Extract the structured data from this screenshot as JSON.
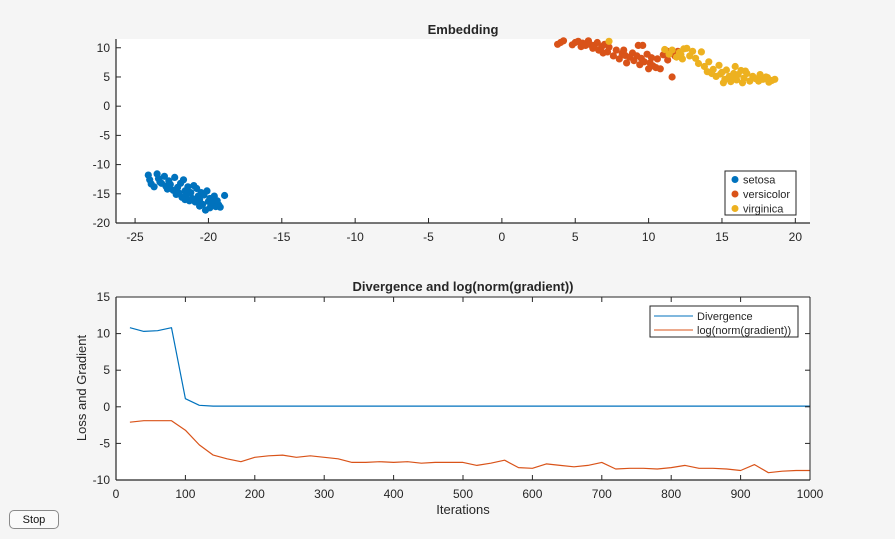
{
  "figure": {
    "background": "#f5f5f5",
    "stop_button_label": "Stop"
  },
  "chart_data": [
    {
      "type": "scatter",
      "title": "Embedding",
      "xlabel": "",
      "ylabel": "",
      "xlim": [
        -26.3,
        21
      ],
      "ylim": [
        -20,
        11.5
      ],
      "xticks": [
        -25,
        -20,
        -15,
        -10,
        -5,
        0,
        5,
        10,
        15,
        20
      ],
      "yticks": [
        -20,
        -15,
        -10,
        -5,
        0,
        5,
        10
      ],
      "grid": false,
      "legend_position": "bottom-right",
      "series": [
        {
          "name": "setosa",
          "color": "#0072BD",
          "points": [
            [
              -24.1,
              -11.8
            ],
            [
              -24.0,
              -12.6
            ],
            [
              -23.9,
              -13.3
            ],
            [
              -23.7,
              -13.8
            ],
            [
              -23.5,
              -11.6
            ],
            [
              -23.4,
              -12.4
            ],
            [
              -23.2,
              -13.2
            ],
            [
              -23.0,
              -12.0
            ],
            [
              -22.9,
              -13.7
            ],
            [
              -22.7,
              -12.8
            ],
            [
              -22.6,
              -13.4
            ],
            [
              -22.4,
              -14.4
            ],
            [
              -22.3,
              -12.2
            ],
            [
              -22.1,
              -13.9
            ],
            [
              -22.0,
              -14.9
            ],
            [
              -21.9,
              -13.2
            ],
            [
              -21.8,
              -15.6
            ],
            [
              -21.7,
              -12.6
            ],
            [
              -21.6,
              -14.5
            ],
            [
              -21.5,
              -15.2
            ],
            [
              -21.4,
              -13.8
            ],
            [
              -21.3,
              -16.2
            ],
            [
              -21.2,
              -14.8
            ],
            [
              -21.1,
              -15.8
            ],
            [
              -21.0,
              -13.6
            ],
            [
              -20.9,
              -16.4
            ],
            [
              -20.8,
              -14.1
            ],
            [
              -20.7,
              -15.4
            ],
            [
              -20.6,
              -16.0
            ],
            [
              -20.5,
              -14.8
            ],
            [
              -20.4,
              -16.8
            ],
            [
              -20.3,
              -15.2
            ],
            [
              -20.2,
              -17.8
            ],
            [
              -20.1,
              -14.5
            ],
            [
              -20.0,
              -16.3
            ],
            [
              -19.9,
              -15.8
            ],
            [
              -19.8,
              -17.0
            ],
            [
              -19.7,
              -16.5
            ],
            [
              -19.6,
              -15.4
            ],
            [
              -19.5,
              -17.2
            ],
            [
              -19.4,
              -16.2
            ],
            [
              -19.3,
              -16.9
            ],
            [
              -19.2,
              -17.3
            ],
            [
              -18.9,
              -15.3
            ],
            [
              -22.8,
              -14.2
            ],
            [
              -23.3,
              -13.0
            ],
            [
              -21.6,
              -16.0
            ],
            [
              -20.6,
              -17.1
            ],
            [
              -22.2,
              -15.1
            ],
            [
              -19.9,
              -17.4
            ]
          ]
        },
        {
          "name": "versicolor",
          "color": "#D95319",
          "points": [
            [
              3.8,
              10.6
            ],
            [
              4.0,
              10.9
            ],
            [
              4.2,
              11.2
            ],
            [
              4.8,
              10.5
            ],
            [
              5.0,
              10.9
            ],
            [
              5.2,
              11.1
            ],
            [
              5.4,
              10.2
            ],
            [
              5.5,
              10.8
            ],
            [
              5.7,
              10.4
            ],
            [
              5.9,
              11.2
            ],
            [
              6.0,
              10.6
            ],
            [
              6.2,
              9.9
            ],
            [
              6.3,
              10.4
            ],
            [
              6.5,
              10.9
            ],
            [
              6.6,
              9.6
            ],
            [
              6.8,
              10.2
            ],
            [
              7.0,
              10.6
            ],
            [
              7.2,
              9.3
            ],
            [
              7.3,
              10.1
            ],
            [
              7.6,
              8.6
            ],
            [
              7.8,
              9.6
            ],
            [
              8.0,
              8.1
            ],
            [
              8.2,
              9.0
            ],
            [
              8.4,
              8.7
            ],
            [
              8.5,
              7.4
            ],
            [
              8.7,
              8.4
            ],
            [
              8.9,
              9.1
            ],
            [
              9.0,
              7.8
            ],
            [
              9.2,
              8.6
            ],
            [
              9.3,
              10.4
            ],
            [
              9.4,
              7.1
            ],
            [
              9.5,
              8.2
            ],
            [
              9.6,
              10.4
            ],
            [
              9.7,
              7.6
            ],
            [
              9.9,
              8.9
            ],
            [
              10.0,
              6.4
            ],
            [
              10.1,
              7.4
            ],
            [
              10.2,
              8.3
            ],
            [
              10.3,
              6.9
            ],
            [
              10.5,
              6.6
            ],
            [
              10.6,
              8.1
            ],
            [
              10.8,
              6.4
            ],
            [
              11.0,
              8.8
            ],
            [
              11.3,
              7.9
            ],
            [
              11.6,
              5.0
            ],
            [
              11.8,
              8.6
            ],
            [
              12.0,
              9.4
            ],
            [
              8.3,
              9.6
            ],
            [
              6.9,
              9.1
            ],
            [
              11.2,
              9.5
            ]
          ]
        },
        {
          "name": "virginica",
          "color": "#EDB120",
          "points": [
            [
              7.3,
              11.1
            ],
            [
              11.1,
              9.7
            ],
            [
              11.4,
              8.9
            ],
            [
              11.6,
              9.6
            ],
            [
              11.9,
              8.4
            ],
            [
              12.1,
              9.2
            ],
            [
              12.3,
              8.1
            ],
            [
              12.4,
              9.8
            ],
            [
              12.6,
              9.9
            ],
            [
              12.8,
              8.6
            ],
            [
              13.0,
              9.4
            ],
            [
              13.6,
              9.3
            ],
            [
              13.8,
              6.8
            ],
            [
              14.1,
              7.6
            ],
            [
              14.3,
              5.6
            ],
            [
              14.4,
              6.3
            ],
            [
              14.6,
              5.1
            ],
            [
              14.8,
              7.0
            ],
            [
              15.0,
              5.8
            ],
            [
              15.2,
              4.6
            ],
            [
              15.3,
              6.2
            ],
            [
              15.5,
              5.1
            ],
            [
              15.6,
              4.2
            ],
            [
              15.8,
              5.6
            ],
            [
              15.9,
              6.8
            ],
            [
              16.0,
              4.5
            ],
            [
              16.1,
              5.4
            ],
            [
              16.3,
              6.1
            ],
            [
              16.5,
              4.8
            ],
            [
              16.7,
              5.6
            ],
            [
              16.9,
              4.3
            ],
            [
              17.1,
              5.1
            ],
            [
              17.3,
              4.7
            ],
            [
              17.6,
              5.4
            ],
            [
              17.8,
              4.6
            ],
            [
              18.0,
              5.0
            ],
            [
              18.2,
              4.1
            ],
            [
              18.4,
              4.4
            ],
            [
              18.6,
              4.6
            ],
            [
              13.4,
              7.3
            ],
            [
              15.1,
              4.0
            ],
            [
              16.4,
              4.0
            ],
            [
              14.9,
              5.5
            ],
            [
              17.5,
              4.3
            ],
            [
              12.2,
              8.8
            ],
            [
              16.6,
              6.0
            ],
            [
              18.1,
              4.9
            ],
            [
              15.7,
              4.9
            ],
            [
              14.0,
              5.9
            ],
            [
              13.2,
              8.2
            ]
          ]
        }
      ]
    },
    {
      "type": "line",
      "title": "Divergence and log(norm(gradient))",
      "xlabel": "Iterations",
      "ylabel": "Loss and Gradient",
      "xlim": [
        0,
        1000
      ],
      "ylim": [
        -10,
        15
      ],
      "xticks": [
        0,
        100,
        200,
        300,
        400,
        500,
        600,
        700,
        800,
        900,
        1000
      ],
      "yticks": [
        -10,
        -5,
        0,
        5,
        10,
        15
      ],
      "grid": false,
      "legend_position": "top-right",
      "x": [
        20,
        40,
        60,
        80,
        100,
        120,
        140,
        160,
        180,
        200,
        220,
        240,
        260,
        280,
        300,
        320,
        340,
        360,
        380,
        400,
        420,
        440,
        460,
        480,
        500,
        520,
        540,
        560,
        580,
        600,
        620,
        640,
        660,
        680,
        700,
        720,
        740,
        760,
        780,
        800,
        820,
        840,
        860,
        880,
        900,
        920,
        940,
        960,
        980,
        1000
      ],
      "series": [
        {
          "name": "Divergence",
          "color": "#0072BD",
          "values": [
            10.8,
            10.3,
            10.4,
            10.8,
            1.1,
            0.2,
            0.1,
            0.1,
            0.1,
            0.1,
            0.1,
            0.1,
            0.1,
            0.1,
            0.1,
            0.1,
            0.1,
            0.1,
            0.1,
            0.1,
            0.1,
            0.1,
            0.1,
            0.1,
            0.1,
            0.1,
            0.1,
            0.1,
            0.1,
            0.1,
            0.1,
            0.1,
            0.1,
            0.1,
            0.1,
            0.1,
            0.1,
            0.1,
            0.1,
            0.1,
            0.1,
            0.1,
            0.1,
            0.1,
            0.1,
            0.1,
            0.1,
            0.1,
            0.1,
            0.1
          ]
        },
        {
          "name": "log(norm(gradient))",
          "color": "#D95319",
          "values": [
            -2.1,
            -1.9,
            -1.9,
            -1.9,
            -3.2,
            -5.2,
            -6.6,
            -7.1,
            -7.5,
            -6.9,
            -6.7,
            -6.6,
            -6.9,
            -6.7,
            -6.9,
            -7.1,
            -7.6,
            -7.6,
            -7.5,
            -7.6,
            -7.5,
            -7.7,
            -7.6,
            -7.6,
            -7.6,
            -8.0,
            -7.7,
            -7.3,
            -8.3,
            -8.4,
            -7.8,
            -8.0,
            -8.2,
            -8.0,
            -7.6,
            -8.5,
            -8.4,
            -8.4,
            -8.5,
            -8.3,
            -8.0,
            -8.4,
            -8.4,
            -8.5,
            -8.7,
            -7.9,
            -9.0,
            -8.8,
            -8.7,
            -8.7
          ]
        }
      ]
    }
  ]
}
